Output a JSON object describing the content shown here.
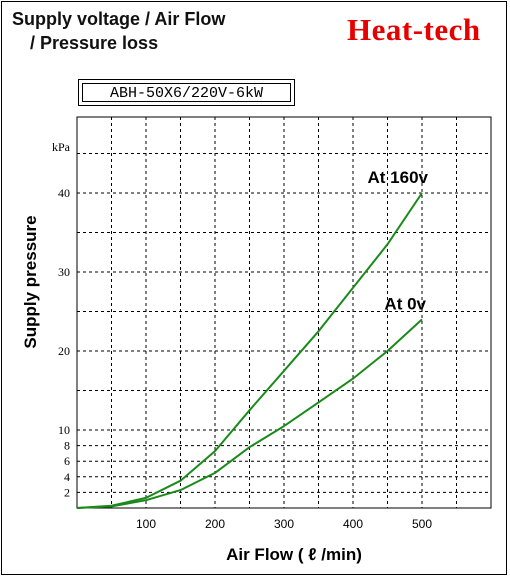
{
  "header": {
    "title_line1": "Supply voltage / Air Flow",
    "title_line2": "/ Pressure loss",
    "brand": "Heat-tech"
  },
  "model_label": "ABH-50X6/220V-6kW",
  "colors": {
    "series": "#1a8a1a",
    "brand": "#e60000",
    "grid": "#000000"
  },
  "chart_data": {
    "type": "line",
    "title": "Supply voltage / Air Flow / Pressure loss",
    "xlabel": "Air Flow ( ℓ /min)",
    "ylabel": "Supply pressure",
    "yunit": "kPa",
    "xlim": [
      0,
      600
    ],
    "xticks": [
      100,
      200,
      300,
      400,
      500
    ],
    "yticks": [
      2,
      4,
      6,
      8,
      10,
      20,
      30,
      40
    ],
    "y_scale": "non-uniform (compressed below 10 kPa)",
    "grid": true,
    "series": [
      {
        "name": "At 160v",
        "x": [
          0,
          50,
          100,
          150,
          200,
          250,
          300,
          350,
          400,
          450,
          500
        ],
        "y": [
          0,
          0.3,
          1.3,
          3.5,
          7.3,
          12.5,
          17.5,
          22.5,
          28,
          33.5,
          40
        ]
      },
      {
        "name": "At 0v",
        "x": [
          0,
          50,
          100,
          150,
          200,
          250,
          300,
          350,
          400,
          450,
          500
        ],
        "y": [
          0,
          0.2,
          1.0,
          2.3,
          4.5,
          7.8,
          10.5,
          13.5,
          16.5,
          20,
          24
        ]
      }
    ]
  }
}
